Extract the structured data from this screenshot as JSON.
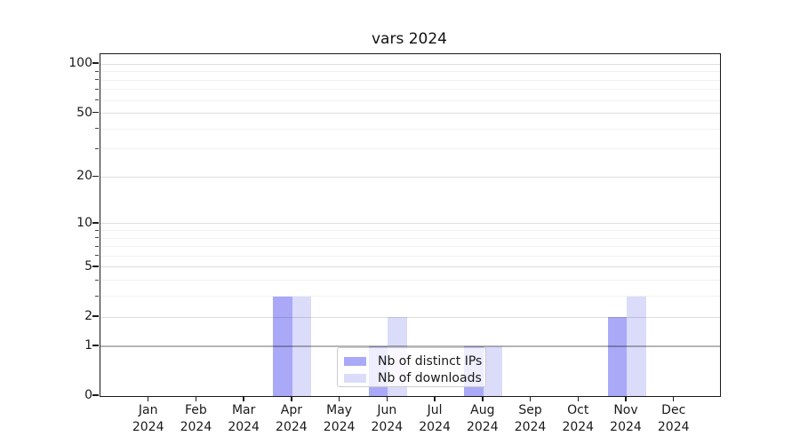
{
  "title": "vars 2024",
  "chart_data": {
    "type": "bar",
    "title": "vars 2024",
    "categories": [
      "Jan",
      "Feb",
      "Mar",
      "Apr",
      "May",
      "Jun",
      "Jul",
      "Aug",
      "Sep",
      "Oct",
      "Nov",
      "Dec"
    ],
    "x_year_label": "2024",
    "series": [
      {
        "name": "Nb of distinct IPs",
        "color": "#a9a9f7",
        "values": [
          0,
          0,
          0,
          3,
          0,
          1,
          0,
          1,
          0,
          0,
          2,
          0
        ]
      },
      {
        "name": "Nb of downloads",
        "color": "#dbdbfa",
        "values": [
          0,
          0,
          0,
          3,
          0,
          2,
          0,
          1,
          0,
          0,
          3,
          0
        ]
      }
    ],
    "xlabel": "",
    "ylabel": "",
    "y_scale": "log(1+x)",
    "ylim": [
      0,
      115
    ],
    "y_major_ticks": [
      0,
      1,
      2,
      5,
      10,
      20,
      50,
      100
    ],
    "y_minor_ticks": [
      3,
      4,
      6,
      7,
      8,
      9,
      30,
      40,
      60,
      70,
      80,
      90
    ],
    "grid": true,
    "legend_position": "lower center"
  }
}
